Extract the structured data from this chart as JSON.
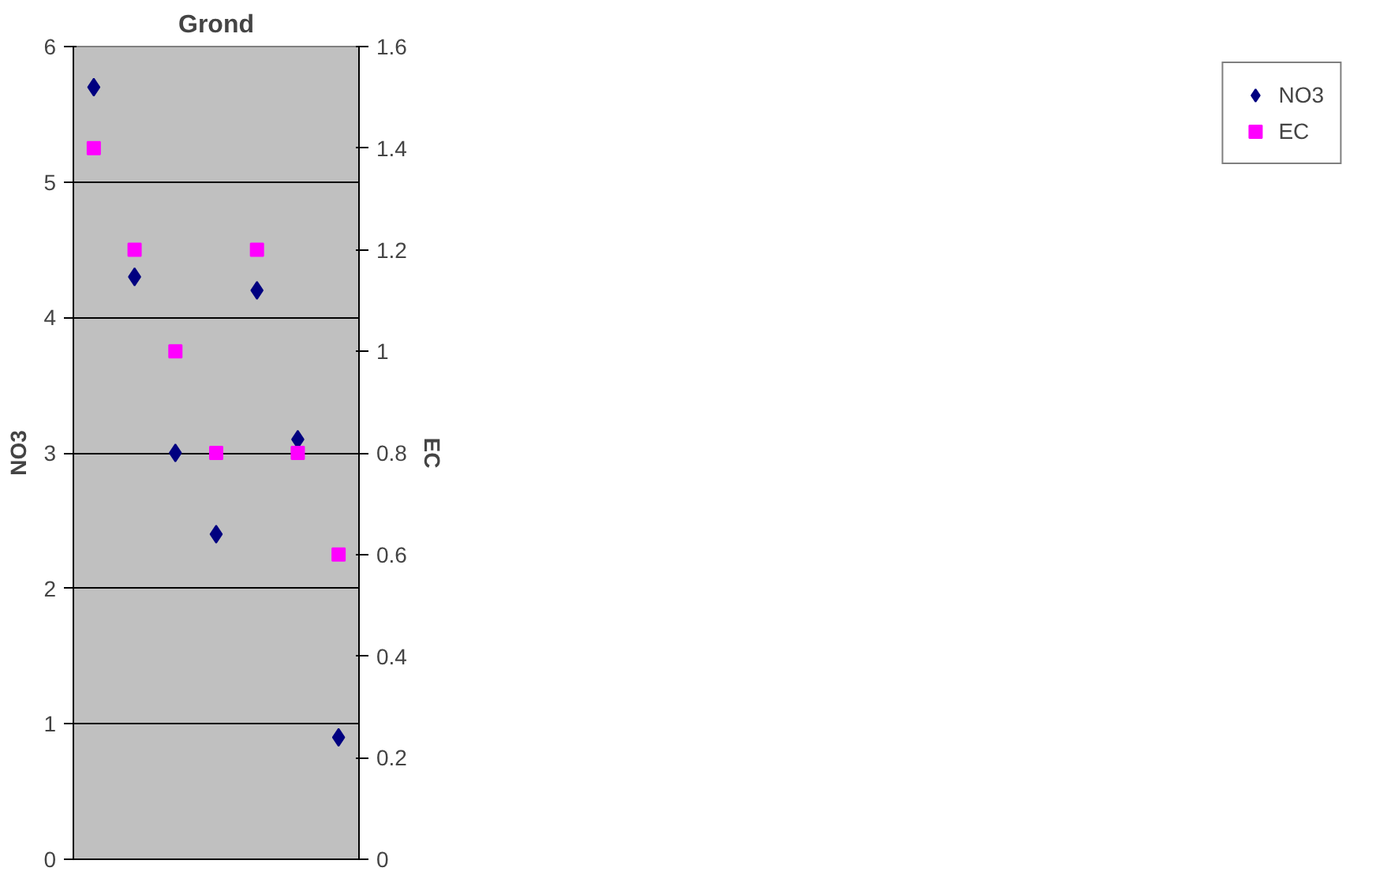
{
  "chart_data": {
    "type": "scatter",
    "title": "Grond",
    "ylabel": "NO3",
    "y2label": "EC",
    "categories": [
      null,
      null,
      null,
      null,
      null,
      null,
      null
    ],
    "series": [
      {
        "name": "NO3",
        "color": "#000080",
        "marker": "diamond",
        "values": [
          5.7,
          4.3,
          3.0,
          2.4,
          4.2,
          3.1,
          0.9
        ]
      },
      {
        "name": "EC",
        "color": "#ff00ff",
        "marker": "square",
        "axis": "y2",
        "values": [
          1.4,
          1.2,
          1.0,
          0.8,
          1.2,
          0.8,
          0.6
        ]
      }
    ],
    "ylim": [
      0,
      6
    ],
    "yticks": [
      0,
      1,
      2,
      3,
      4,
      5,
      6
    ],
    "y2lim": [
      0,
      1.6
    ],
    "y2ticks": [
      0,
      0.2,
      0.4,
      0.6,
      0.8,
      1,
      1.2,
      1.4,
      1.6
    ],
    "grid": "y",
    "legend": "right"
  }
}
